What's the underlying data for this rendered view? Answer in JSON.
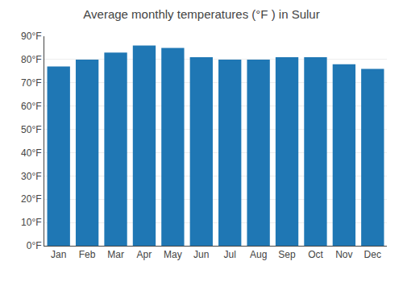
{
  "chart_data": {
    "type": "bar",
    "title": "Average monthly temperatures (°F ) in Sulur",
    "categories": [
      "Jan",
      "Feb",
      "Mar",
      "Apr",
      "May",
      "Jun",
      "Jul",
      "Aug",
      "Sep",
      "Oct",
      "Nov",
      "Dec"
    ],
    "values": [
      77,
      80,
      83,
      86,
      85,
      81,
      80,
      80,
      81,
      81,
      78,
      76
    ],
    "ylim": [
      0,
      90
    ],
    "yticks": [
      {
        "value": 0,
        "label": "0°F"
      },
      {
        "value": 10,
        "label": "10°F"
      },
      {
        "value": 20,
        "label": "20°F"
      },
      {
        "value": 30,
        "label": "30°F"
      },
      {
        "value": 40,
        "label": "40°F"
      },
      {
        "value": 50,
        "label": "50°F"
      },
      {
        "value": 60,
        "label": "60°F"
      },
      {
        "value": 70,
        "label": "70°F"
      },
      {
        "value": 80,
        "label": "80°F"
      },
      {
        "value": 90,
        "label": "90°F"
      }
    ],
    "grid": true
  }
}
